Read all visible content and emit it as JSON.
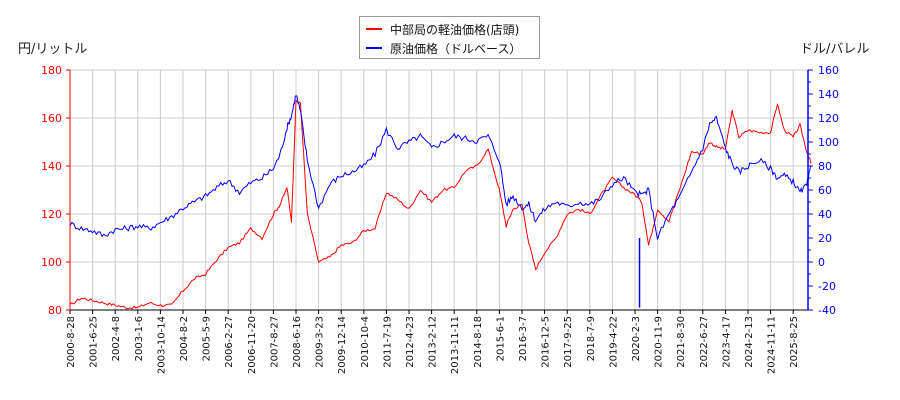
{
  "chart_data": {
    "type": "line",
    "title": "",
    "legend": [
      {
        "name": "中部局の軽油価格(店頭)",
        "color": "#ff0000",
        "axis": "left"
      },
      {
        "name": "原油価格（ドルベース）",
        "color": "#0000ff",
        "axis": "right"
      }
    ],
    "legend_position": "top-center",
    "ylabel_left": "円/リットル",
    "ylabel_right": "ドル/バレル",
    "ylim_left": [
      80,
      180
    ],
    "ylim_right": [
      -40,
      160
    ],
    "yticks_left": [
      80,
      100,
      120,
      140,
      160,
      180
    ],
    "yticks_right": [
      -40,
      -20,
      0,
      20,
      40,
      60,
      80,
      100,
      120,
      140,
      160
    ],
    "grid": true,
    "x_tick_labels": [
      "2000-8-28",
      "2001-6-25",
      "2002-4-8",
      "2003-1-6",
      "2003-10-14",
      "2004-8-2",
      "2005-5-9",
      "2006-2-27",
      "2006-11-20",
      "2007-8-27",
      "2008-6-16",
      "2009-3-23",
      "2009-12-14",
      "2010-10-4",
      "2011-7-19",
      "2012-4-23",
      "2013-2-12",
      "2013-11-11",
      "2014-8-18",
      "2015-6-1",
      "2016-3-7",
      "2016-12-5",
      "2017-9-25",
      "2018-7-9",
      "2019-4-22",
      "2020-2-3",
      "2020-11-9",
      "2021-8-30",
      "2022-6-27",
      "2023-4-17",
      "2024-2-13",
      "2024-11-11",
      "2025-8-25"
    ],
    "series": [
      {
        "name": "中部局の軽油価格(店頭)",
        "axis": "left",
        "x_index": [
          0,
          0.5,
          1,
          1.5,
          2,
          2.5,
          3,
          3.5,
          4,
          4.5,
          5,
          5.5,
          6,
          6.5,
          7,
          7.5,
          8,
          8.5,
          9,
          9.3,
          9.6,
          9.8,
          10,
          10.2,
          10.5,
          11,
          11.5,
          12,
          12.5,
          13,
          13.5,
          14,
          14.5,
          15,
          15.5,
          16,
          16.5,
          17,
          17.5,
          18,
          18.5,
          19,
          19.3,
          19.6,
          20,
          20.3,
          20.6,
          21,
          21.5,
          22,
          22.5,
          23,
          23.5,
          24,
          24.5,
          25,
          25.3,
          25.6,
          26,
          26.5,
          27,
          27.5,
          28,
          28.3,
          28.6,
          29,
          29.3,
          29.6,
          30,
          30.5,
          31,
          31.3,
          31.6,
          32,
          32.3,
          32.6,
          32.8
        ],
        "values": [
          82,
          85,
          84,
          83,
          82,
          81,
          81,
          83,
          82,
          82,
          88,
          93,
          95,
          101,
          106,
          108,
          114,
          110,
          120,
          124,
          131,
          117,
          167,
          166,
          120,
          100,
          102,
          107,
          108,
          113,
          114,
          129,
          126,
          122,
          130,
          125,
          130,
          131,
          138,
          140,
          147,
          130,
          115,
          122,
          124,
          108,
          97,
          104,
          110,
          120,
          122,
          120,
          128,
          135,
          131,
          128,
          125,
          107,
          122,
          117,
          131,
          146,
          145,
          150,
          148,
          147,
          163,
          152,
          155,
          154,
          154,
          166,
          155,
          152,
          157,
          146,
          141
        ]
      },
      {
        "name": "原油価格（ドルベース）",
        "axis": "right",
        "x_index": [
          0,
          0.5,
          1,
          1.5,
          2,
          2.5,
          3,
          3.5,
          4,
          4.5,
          5,
          5.5,
          6,
          6.5,
          7,
          7.5,
          8,
          8.5,
          9,
          9.3,
          9.6,
          9.8,
          10,
          10.2,
          10.5,
          11,
          11.5,
          12,
          12.5,
          13,
          13.5,
          14,
          14.5,
          15,
          15.5,
          16,
          16.5,
          17,
          17.5,
          18,
          18.5,
          19,
          19.3,
          19.6,
          20,
          20.3,
          20.6,
          21,
          21.5,
          22,
          22.5,
          23,
          23.5,
          24,
          24.5,
          25,
          25.3,
          25.6,
          26,
          26.5,
          27,
          27.5,
          28,
          28.3,
          28.6,
          29,
          29.3,
          29.6,
          30,
          30.5,
          31,
          31.3,
          31.6,
          32,
          32.3,
          32.6,
          32.8
        ],
        "values": [
          32,
          28,
          26,
          22,
          27,
          28,
          30,
          28,
          33,
          38,
          45,
          50,
          55,
          62,
          68,
          58,
          66,
          70,
          78,
          90,
          112,
          122,
          140,
          125,
          85,
          45,
          65,
          72,
          75,
          80,
          90,
          110,
          95,
          100,
          105,
          95,
          100,
          105,
          103,
          101,
          105,
          85,
          48,
          55,
          45,
          48,
          35,
          44,
          50,
          46,
          50,
          48,
          53,
          65,
          70,
          58,
          56,
          60,
          20,
          40,
          55,
          75,
          95,
          115,
          120,
          95,
          82,
          75,
          80,
          85,
          78,
          70,
          72,
          67,
          58,
          64,
          80
        ]
      }
    ]
  }
}
